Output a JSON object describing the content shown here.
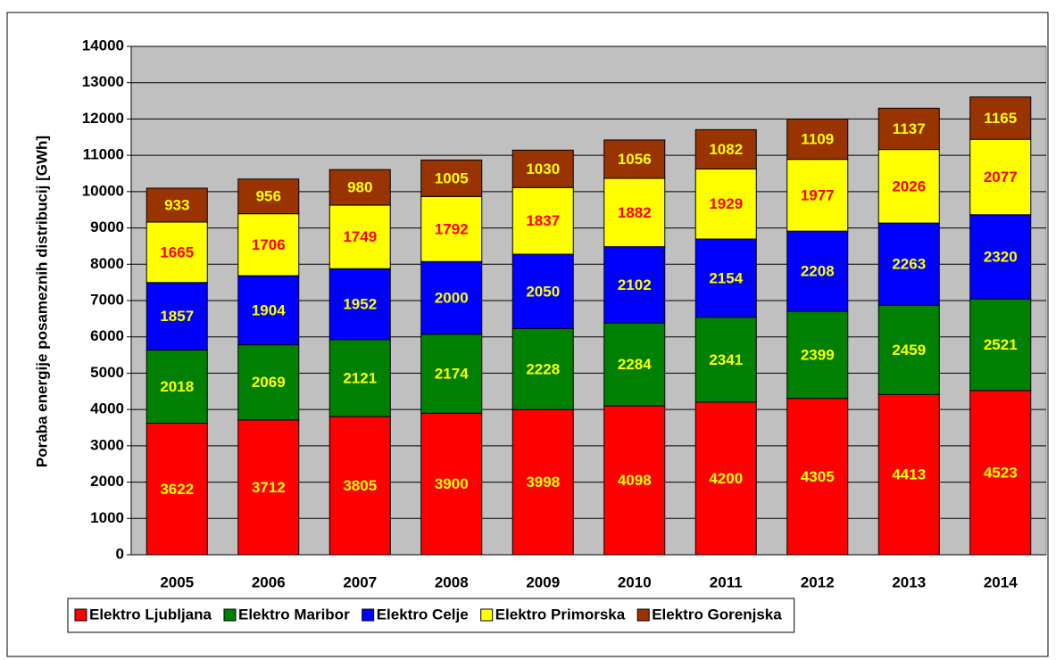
{
  "chart_data": {
    "type": "stacked_bar",
    "y_label": "Poraba energije posameznih distribucij [GWh]",
    "categories": [
      "2005",
      "2006",
      "2007",
      "2008",
      "2009",
      "2010",
      "2011",
      "2012",
      "2013",
      "2014"
    ],
    "series": [
      {
        "name": "Elektro Ljubljana",
        "color": "#ff0000",
        "label_color": "#ffff00",
        "values": [
          3622,
          3712,
          3805,
          3900,
          3998,
          4098,
          4200,
          4305,
          4413,
          4523
        ]
      },
      {
        "name": "Elektro Maribor",
        "color": "#008000",
        "label_color": "#ffff00",
        "values": [
          2018,
          2069,
          2121,
          2174,
          2228,
          2284,
          2341,
          2399,
          2459,
          2521
        ]
      },
      {
        "name": "Elektro Celje",
        "color": "#0000ff",
        "label_color": "#ffff00",
        "values": [
          1857,
          1904,
          1952,
          2000,
          2050,
          2102,
          2154,
          2208,
          2263,
          2320
        ]
      },
      {
        "name": "Elektro Primorska",
        "color": "#ffff00",
        "label_color": "#ff0000",
        "values": [
          1665,
          1706,
          1749,
          1792,
          1837,
          1882,
          1929,
          1977,
          2026,
          2077
        ]
      },
      {
        "name": "Elektro Gorenjska",
        "color": "#993300",
        "label_color": "#ffff00",
        "values": [
          933,
          956,
          980,
          1005,
          1030,
          1056,
          1082,
          1109,
          1137,
          1165
        ]
      }
    ],
    "ylim": [
      0,
      14000
    ],
    "yticks": [
      0,
      1000,
      2000,
      3000,
      4000,
      5000,
      6000,
      7000,
      8000,
      9000,
      10000,
      11000,
      12000,
      13000,
      14000
    ],
    "grid": true,
    "plot_background": "#c0c0c0",
    "legend": "bottom"
  }
}
